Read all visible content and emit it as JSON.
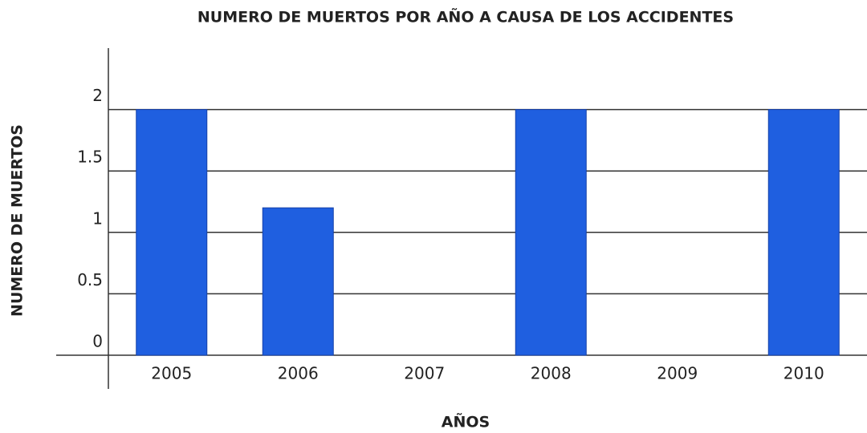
{
  "chart_data": {
    "type": "bar",
    "title": "NUMERO DE MUERTOS POR AÑO A CAUSA DE LOS ACCIDENTES",
    "x_label": "AÑOS",
    "y_label": "NUMERO DE MUERTOS",
    "categories": [
      "2005",
      "2006",
      "2007",
      "2008",
      "2009",
      "2010"
    ],
    "values": [
      2,
      1.2,
      0,
      2,
      0,
      2
    ],
    "color": "#1f5fe0",
    "ylim": [
      0,
      2.5
    ],
    "yticks": [
      0,
      0.5,
      1,
      1.5,
      2
    ],
    "grid": true
  }
}
